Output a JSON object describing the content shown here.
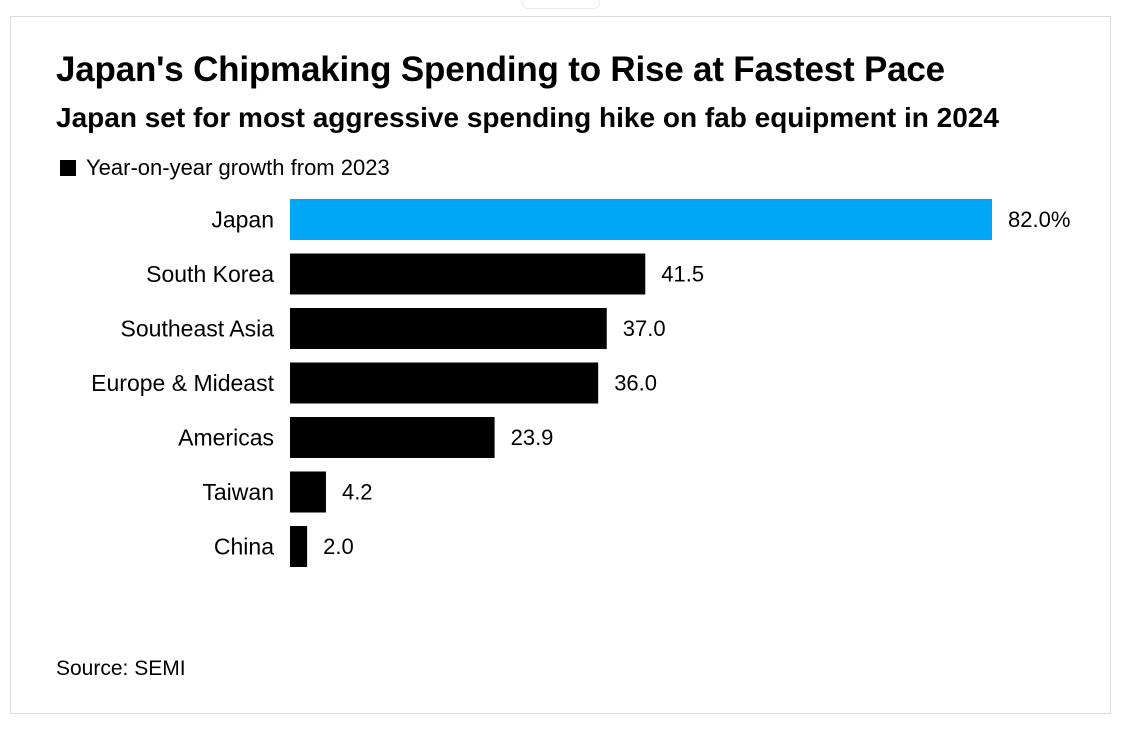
{
  "chart_data": {
    "type": "bar",
    "orientation": "horizontal",
    "title": "Japan's Chipmaking Spending to Rise at Fastest Pace",
    "subtitle": "Japan set for most aggressive spending hike on fab equipment in 2024",
    "legend": {
      "label": "Year-on-year growth from 2023",
      "color": "#000000",
      "placement": "top-left"
    },
    "categories": [
      "Japan",
      "South Korea",
      "Southeast Asia",
      "Europe & Mideast",
      "Americas",
      "Taiwan",
      "China"
    ],
    "values": [
      82.0,
      41.5,
      37.0,
      36.0,
      23.9,
      4.2,
      2.0
    ],
    "value_labels": [
      "82.0%",
      "41.5",
      "37.0",
      "36.0",
      "23.9",
      "4.2",
      "2.0"
    ],
    "bar_colors": [
      "#00a7f6",
      "#000000",
      "#000000",
      "#000000",
      "#000000",
      "#000000",
      "#000000"
    ],
    "xlim": [
      0,
      82
    ],
    "grid": false,
    "source": "Source: SEMI"
  }
}
